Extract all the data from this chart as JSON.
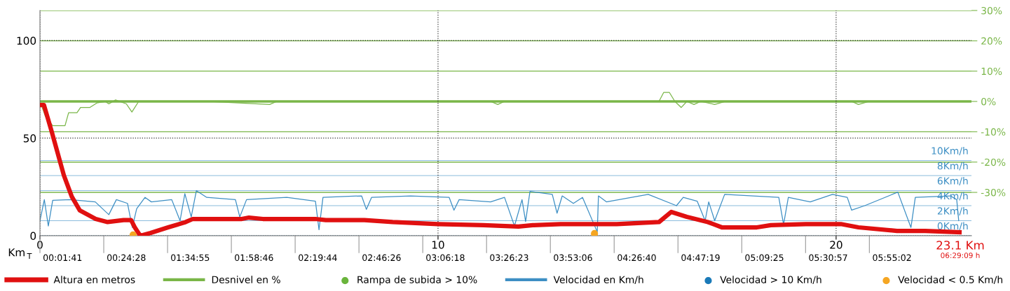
{
  "chart_data": {
    "type": "line",
    "xlabel": "Km",
    "xlim": [
      0,
      23.4
    ],
    "xticks": [
      0,
      10,
      20
    ],
    "ylim": [
      0,
      115.4
    ],
    "yticks": [
      0,
      50,
      100
    ],
    "y2lim": [
      -44.3,
      30
    ],
    "y2ticks": [
      {
        "value": 30,
        "label": "30%"
      },
      {
        "value": 20,
        "label": "20%"
      },
      {
        "value": 10,
        "label": "10%"
      },
      {
        "value": 0,
        "label": "0%"
      },
      {
        "value": -10,
        "label": "-10%"
      },
      {
        "value": -20,
        "label": "-20%"
      },
      {
        "value": -30,
        "label": "-30%"
      }
    ],
    "y3lim": [
      0,
      29.95
    ],
    "y3ticks": [
      {
        "value": 10,
        "label": "10Km/h"
      },
      {
        "value": 8,
        "label": "8Km/h"
      },
      {
        "value": 6,
        "label": "6Km/h"
      },
      {
        "value": 4,
        "label": "4Km/h"
      },
      {
        "value": 2,
        "label": "2Km/h"
      },
      {
        "value": 0,
        "label": "0Km/h"
      }
    ],
    "grid": true,
    "legend": "bottom",
    "ref_lines": [
      {
        "axis": "y2",
        "value": 0,
        "color": "#7ab648"
      }
    ],
    "annotations": [
      "23.1 Km",
      "06:29:09 h",
      "T",
      "00:01:41",
      "00:24:28",
      "01:34:55",
      "01:58:46",
      "02:19:44",
      "02:46:26",
      "03:06:18",
      "03:26:23",
      "03:53:06",
      "04:26:40",
      "04:47:19",
      "05:09:25",
      "05:30:57",
      "05:55:02"
    ],
    "series": [
      {
        "name": "Altura en metros",
        "color": "#e01010",
        "x": [
          0,
          0.1,
          0.3,
          0.6,
          0.8,
          1.0,
          1.4,
          1.7,
          2.1,
          2.29,
          2.39,
          2.52,
          2.78,
          3.22,
          3.66,
          3.84,
          5.07,
          5.25,
          5.6,
          6.92,
          7.18,
          8.15,
          8.86,
          10.0,
          11.14,
          12.02,
          12.38,
          13.08,
          14.49,
          15.55,
          15.86,
          16.25,
          16.78,
          17.13,
          18.01,
          18.36,
          19.24,
          20.12,
          20.56,
          21.53,
          22.24,
          23.1
        ],
        "values": [
          67,
          67,
          53,
          31,
          20,
          13,
          8.6,
          7,
          8,
          8,
          4,
          0,
          1.4,
          4.3,
          7,
          8.6,
          8.6,
          9.3,
          8.6,
          8.6,
          8,
          8,
          7,
          6,
          5.4,
          4.7,
          5.4,
          6,
          6,
          7,
          12.2,
          9.7,
          7,
          4.3,
          4.3,
          5.4,
          6,
          6,
          4.3,
          2.5,
          2.5,
          1.8
        ]
      },
      {
        "name": "Desnivel en %",
        "axis": "y2",
        "color": "#7ab648",
        "x": [
          0,
          0.14,
          0.32,
          0.63,
          0.72,
          0.93,
          1.02,
          1.25,
          1.43,
          1.64,
          1.73,
          1.9,
          2.17,
          2.31,
          2.48,
          4.28,
          5.77,
          5.95,
          11.32,
          11.5,
          11.67,
          15.55,
          15.67,
          15.81,
          15.95,
          16.11,
          16.25,
          16.43,
          16.6,
          16.95,
          17.22,
          20.39,
          20.56,
          20.83,
          23.1
        ],
        "values": [
          0,
          -5,
          -8,
          -8,
          -3.7,
          -3.7,
          -2,
          -2,
          -0.5,
          0,
          -0.8,
          0.5,
          -0.8,
          -3.5,
          0,
          0,
          -1,
          0,
          0,
          -1,
          0,
          0,
          3,
          3,
          0,
          -2,
          0,
          -1,
          0,
          -1,
          0,
          0,
          -1,
          0,
          0
        ]
      },
      {
        "name": "Rampa de subida > 10%",
        "type": "scatter",
        "axis": "y2",
        "color": "#6ab43c"
      },
      {
        "name": "Velocidad en Km/h",
        "axis": "y3",
        "color": "#3d8fc4",
        "x": [
          0.0,
          0.11,
          0.21,
          0.32,
          0.76,
          1.39,
          1.73,
          1.92,
          2.2,
          2.32,
          2.43,
          2.64,
          2.8,
          3.31,
          3.52,
          3.64,
          3.8,
          3.93,
          4.19,
          4.91,
          5.02,
          5.19,
          6.2,
          6.92,
          7.01,
          7.11,
          8.08,
          8.2,
          8.33,
          9.31,
          10.28,
          10.4,
          10.53,
          11.32,
          11.67,
          11.92,
          12.11,
          12.2,
          12.31,
          12.87,
          12.99,
          13.12,
          13.4,
          13.63,
          14.0,
          14.03,
          14.23,
          15.28,
          15.99,
          16.16,
          16.51,
          16.71,
          16.8,
          16.95,
          17.2,
          18.56,
          18.68,
          18.8,
          19.35,
          19.91,
          20.28,
          20.39,
          20.72,
          21.55,
          21.88,
          21.99,
          22.87,
          23.03,
          23.08
        ],
        "values": [
          2.0,
          4.8,
          1.3,
          4.7,
          4.8,
          4.5,
          2.8,
          4.8,
          4.3,
          1.1,
          3.6,
          5.1,
          4.5,
          4.8,
          2.0,
          5.6,
          2.5,
          6.0,
          5.1,
          4.8,
          2.5,
          4.8,
          5.1,
          4.6,
          0.8,
          5.1,
          5.3,
          3.5,
          5.1,
          5.3,
          5.1,
          3.4,
          4.8,
          4.5,
          5.1,
          1.3,
          4.8,
          1.9,
          5.9,
          5.5,
          3.0,
          5.3,
          4.3,
          5.1,
          0.5,
          5.3,
          4.5,
          5.5,
          4.0,
          5.1,
          4.6,
          2.0,
          4.5,
          2.0,
          5.5,
          5.1,
          1.5,
          5.1,
          4.5,
          5.5,
          5.1,
          3.4,
          4.0,
          5.8,
          1.1,
          5.1,
          5.3,
          4.8,
          2.0
        ]
      },
      {
        "name": "Velocidad > 10 Km/h",
        "type": "scatter",
        "axis": "y3",
        "color": "#1a7ab8"
      },
      {
        "name": "Velocidad < 0.5 Km/h",
        "type": "scatter",
        "color": "#f5a623",
        "x": [
          2.34,
          13.93
        ],
        "values": [
          0.4,
          1.1
        ]
      }
    ]
  }
}
